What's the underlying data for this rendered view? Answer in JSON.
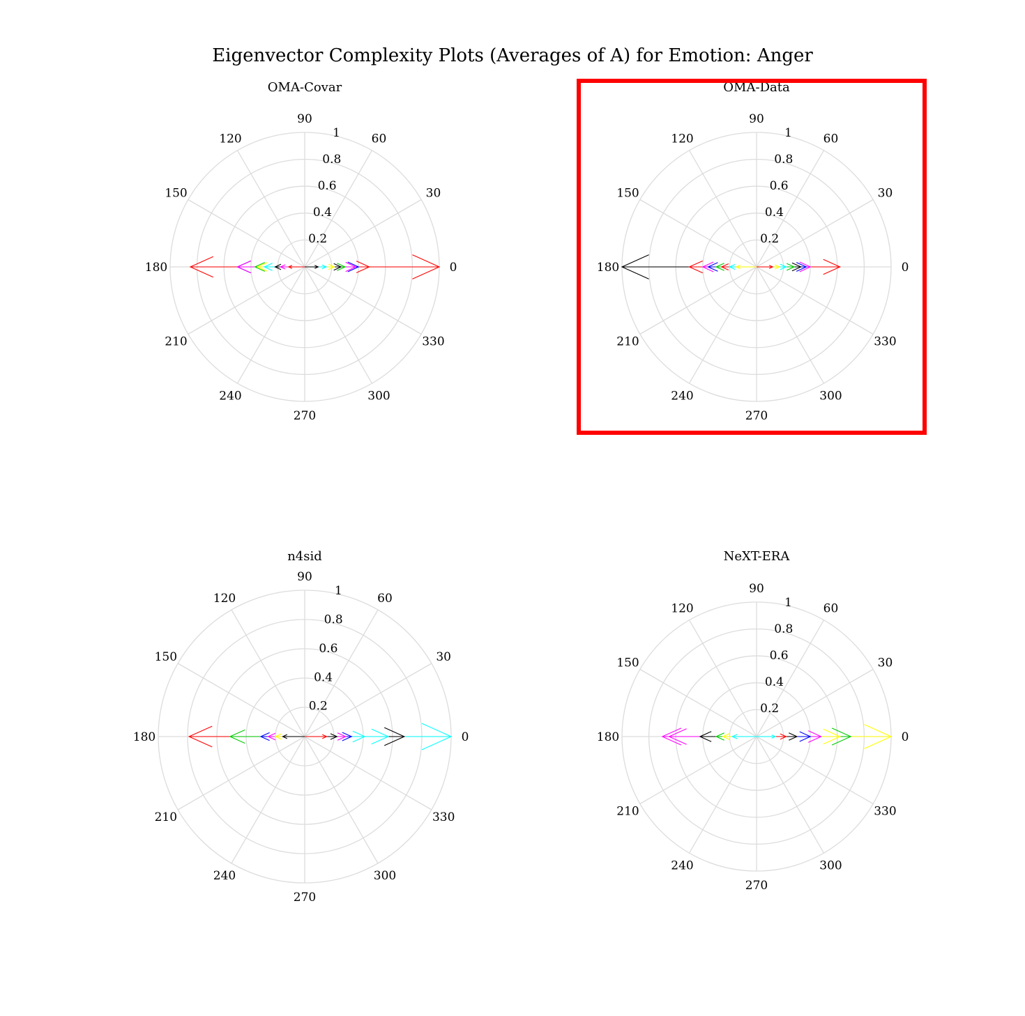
{
  "figure": {
    "title": "Eigenvector Complexity Plots (Averages of A) for Emotion: Anger"
  },
  "colors": {
    "highlight": "#ff0000",
    "grid": "#dcdcdc"
  },
  "chart_data": [
    {
      "type": "polar-compass",
      "title": "OMA-Covar",
      "highlighted": false,
      "theta_ticks": [
        "0",
        "30",
        "60",
        "90",
        "120",
        "150",
        "180",
        "210",
        "240",
        "270",
        "300",
        "330"
      ],
      "r_ticks": [
        "0.2",
        "0.4",
        "0.6",
        "0.8",
        "1"
      ],
      "rlim": [
        0,
        1
      ],
      "vectors": [
        {
          "angle": 0,
          "r": 1.0,
          "color": "#ff0000"
        },
        {
          "angle": 180,
          "r": 0.85,
          "color": "#ff0000"
        },
        {
          "angle": 180,
          "r": 0.5,
          "color": "#0000ff"
        },
        {
          "angle": 180,
          "r": 0.5,
          "color": "#ff00ff"
        },
        {
          "angle": 180,
          "r": 0.37,
          "color": "#00cc00"
        },
        {
          "angle": 180,
          "r": 0.35,
          "color": "#ffff00"
        },
        {
          "angle": 180,
          "r": 0.3,
          "color": "#00ffff"
        },
        {
          "angle": 180,
          "r": 0.22,
          "color": "#000000"
        },
        {
          "angle": 180,
          "r": 0.18,
          "color": "#ff00ff"
        },
        {
          "angle": 180,
          "r": 0.12,
          "color": "#ff0000"
        },
        {
          "angle": 0,
          "r": 0.48,
          "color": "#ff0000"
        },
        {
          "angle": 0,
          "r": 0.4,
          "color": "#0000ff"
        },
        {
          "angle": 0,
          "r": 0.38,
          "color": "#ff00ff"
        },
        {
          "angle": 0,
          "r": 0.3,
          "color": "#00cc00"
        },
        {
          "angle": 0,
          "r": 0.27,
          "color": "#000000"
        },
        {
          "angle": 0,
          "r": 0.22,
          "color": "#ffff00"
        },
        {
          "angle": 0,
          "r": 0.16,
          "color": "#00ffff"
        },
        {
          "angle": 0,
          "r": 0.1,
          "color": "#000000"
        }
      ]
    },
    {
      "type": "polar-compass",
      "title": "OMA-Data",
      "highlighted": true,
      "theta_ticks": [
        "0",
        "30",
        "60",
        "90",
        "120",
        "150",
        "180",
        "210",
        "240",
        "270",
        "300",
        "330"
      ],
      "r_ticks": [
        "0.2",
        "0.4",
        "0.6",
        "0.8",
        "1"
      ],
      "rlim": [
        0,
        1
      ],
      "vectors": [
        {
          "angle": 180,
          "r": 1.0,
          "color": "#000000"
        },
        {
          "angle": 180,
          "r": 0.5,
          "color": "#ff0000"
        },
        {
          "angle": 180,
          "r": 0.4,
          "color": "#ff00ff"
        },
        {
          "angle": 180,
          "r": 0.36,
          "color": "#0000ff"
        },
        {
          "angle": 180,
          "r": 0.3,
          "color": "#00cc00"
        },
        {
          "angle": 180,
          "r": 0.26,
          "color": "#ff0000"
        },
        {
          "angle": 180,
          "r": 0.2,
          "color": "#00ffff"
        },
        {
          "angle": 180,
          "r": 0.15,
          "color": "#ffff00"
        },
        {
          "angle": 0,
          "r": 0.62,
          "color": "#ff0000"
        },
        {
          "angle": 0,
          "r": 0.4,
          "color": "#ff00ff"
        },
        {
          "angle": 0,
          "r": 0.37,
          "color": "#0000ff"
        },
        {
          "angle": 0,
          "r": 0.33,
          "color": "#000000"
        },
        {
          "angle": 0,
          "r": 0.28,
          "color": "#00cc00"
        },
        {
          "angle": 0,
          "r": 0.22,
          "color": "#00ffff"
        },
        {
          "angle": 0,
          "r": 0.17,
          "color": "#ffff00"
        },
        {
          "angle": 0,
          "r": 0.12,
          "color": "#ff0000"
        }
      ]
    },
    {
      "type": "polar-compass",
      "title": "n4sid",
      "highlighted": false,
      "theta_ticks": [
        "0",
        "30",
        "60",
        "90",
        "120",
        "150",
        "180",
        "210",
        "240",
        "270",
        "300",
        "330"
      ],
      "r_ticks": [
        "0.2",
        "0.4",
        "0.6",
        "0.8",
        "1"
      ],
      "rlim": [
        0,
        1
      ],
      "vectors": [
        {
          "angle": 0,
          "r": 1.0,
          "color": "#00ffff"
        },
        {
          "angle": 0,
          "r": 0.68,
          "color": "#000000"
        },
        {
          "angle": 0,
          "r": 0.57,
          "color": "#00ffff"
        },
        {
          "angle": 0,
          "r": 0.41,
          "color": "#00ffff"
        },
        {
          "angle": 0,
          "r": 0.32,
          "color": "#0000ff"
        },
        {
          "angle": 0,
          "r": 0.28,
          "color": "#ff00ff"
        },
        {
          "angle": 0,
          "r": 0.22,
          "color": "#000000"
        },
        {
          "angle": 0,
          "r": 0.15,
          "color": "#ff0000"
        },
        {
          "angle": 180,
          "r": 0.79,
          "color": "#ff0000"
        },
        {
          "angle": 180,
          "r": 0.51,
          "color": "#00cc00"
        },
        {
          "angle": 180,
          "r": 0.3,
          "color": "#0000ff"
        },
        {
          "angle": 180,
          "r": 0.25,
          "color": "#ff00ff"
        },
        {
          "angle": 180,
          "r": 0.2,
          "color": "#ffff00"
        },
        {
          "angle": 180,
          "r": 0.15,
          "color": "#000000"
        }
      ]
    },
    {
      "type": "polar-compass",
      "title": "NeXT-ERA",
      "highlighted": false,
      "theta_ticks": [
        "0",
        "30",
        "60",
        "90",
        "120",
        "150",
        "180",
        "210",
        "240",
        "270",
        "300",
        "330"
      ],
      "r_ticks": [
        "0.2",
        "0.4",
        "0.6",
        "0.8",
        "1"
      ],
      "rlim": [
        0,
        1
      ],
      "vectors": [
        {
          "angle": 0,
          "r": 1.0,
          "color": "#ffff00"
        },
        {
          "angle": 0,
          "r": 0.7,
          "color": "#00cc00"
        },
        {
          "angle": 0,
          "r": 0.62,
          "color": "#ffff00"
        },
        {
          "angle": 0,
          "r": 0.48,
          "color": "#ff00ff"
        },
        {
          "angle": 0,
          "r": 0.4,
          "color": "#0000ff"
        },
        {
          "angle": 0,
          "r": 0.3,
          "color": "#000000"
        },
        {
          "angle": 0,
          "r": 0.22,
          "color": "#ff0000"
        },
        {
          "angle": 0,
          "r": 0.14,
          "color": "#00ffff"
        },
        {
          "angle": 180,
          "r": 0.7,
          "color": "#ff00ff"
        },
        {
          "angle": 180,
          "r": 0.65,
          "color": "#ff00ff"
        },
        {
          "angle": 180,
          "r": 0.42,
          "color": "#000000"
        },
        {
          "angle": 180,
          "r": 0.3,
          "color": "#00cc00"
        },
        {
          "angle": 180,
          "r": 0.25,
          "color": "#ffff00"
        },
        {
          "angle": 180,
          "r": 0.18,
          "color": "#00ffff"
        }
      ]
    }
  ]
}
